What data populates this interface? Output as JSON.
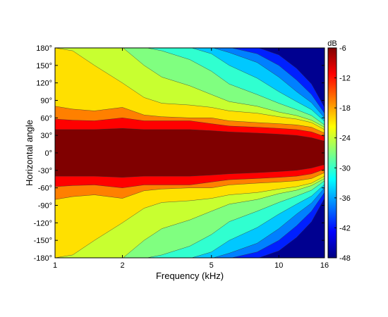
{
  "chart_data": {
    "type": "heatmap",
    "title": "",
    "xlabel": "Frequency (kHz)",
    "ylabel": "Horizontal angle",
    "x_scale": "log",
    "xlim": [
      1,
      16
    ],
    "ylim": [
      -180,
      180
    ],
    "x_ticks": [
      1,
      2,
      5,
      10,
      16
    ],
    "x_tick_labels": [
      "1",
      "2",
      "5",
      "10",
      "16"
    ],
    "y_ticks": [
      180,
      150,
      120,
      90,
      60,
      30,
      0,
      -30,
      -60,
      -90,
      -120,
      -150,
      -180
    ],
    "y_tick_labels": [
      "180°",
      "150°",
      "120°",
      "90°",
      "60°",
      "30°",
      "0°",
      "-30°",
      "-60°",
      "-90°",
      "-120°",
      "-150°",
      "-180°"
    ],
    "colorbar": {
      "unit_label": "dB",
      "range": [
        -48,
        -6
      ],
      "ticks": [
        -6,
        -12,
        -18,
        -24,
        -30,
        -36,
        -42,
        -48
      ],
      "tick_labels": [
        "-6",
        "-12",
        "-18",
        "-24",
        "-30",
        "-36",
        "-42",
        "-48"
      ]
    },
    "contour_levels": [
      {
        "min_db": -6,
        "color": "#800000"
      },
      {
        "min_db": -9,
        "color": "#ff0000"
      },
      {
        "min_db": -12,
        "color": "#ff8000"
      },
      {
        "min_db": -18,
        "color": "#ffe000"
      },
      {
        "min_db": -22,
        "color": "#c8ff30"
      },
      {
        "min_db": -26,
        "color": "#80ff80"
      },
      {
        "min_db": -30,
        "color": "#30ffd0"
      },
      {
        "min_db": -34,
        "color": "#00c8ff"
      },
      {
        "min_db": -38,
        "color": "#0080ff"
      },
      {
        "min_db": -42,
        "color": "#0020ff"
      },
      {
        "min_db": -48,
        "color": "#000090"
      }
    ],
    "isolines_angle_by_level": {
      "x_khz": [
        1,
        1.2,
        1.5,
        2,
        2.5,
        3,
        4,
        5,
        6,
        8,
        10,
        12,
        14,
        16
      ],
      "-6": [
        40,
        40,
        40,
        42,
        40,
        40,
        40,
        38,
        36,
        34,
        32,
        30,
        26,
        20
      ],
      "-9": [
        58,
        56,
        55,
        60,
        55,
        55,
        55,
        50,
        46,
        44,
        42,
        40,
        36,
        28
      ],
      "-12": [
        80,
        75,
        72,
        78,
        65,
        62,
        60,
        60,
        55,
        52,
        50,
        48,
        44,
        34
      ],
      "-18": [
        180,
        175,
        150,
        120,
        95,
        85,
        82,
        78,
        72,
        68,
        62,
        58,
        52,
        40
      ],
      "-22": [
        181,
        181,
        181,
        181,
        150,
        130,
        115,
        100,
        88,
        80,
        70,
        64,
        56,
        44
      ],
      "-26": [
        181,
        181,
        181,
        181,
        181,
        175,
        160,
        140,
        118,
        100,
        85,
        74,
        64,
        48
      ],
      "-30": [
        181,
        181,
        181,
        181,
        181,
        181,
        181,
        170,
        150,
        128,
        105,
        88,
        74,
        54
      ],
      "-34": [
        181,
        181,
        181,
        181,
        181,
        181,
        181,
        181,
        172,
        155,
        130,
        105,
        86,
        60
      ],
      "-38": [
        181,
        181,
        181,
        181,
        181,
        181,
        181,
        181,
        181,
        170,
        150,
        125,
        100,
        68
      ],
      "-42": [
        181,
        181,
        181,
        181,
        181,
        181,
        181,
        181,
        181,
        181,
        168,
        145,
        118,
        78
      ]
    },
    "grid": false,
    "colorbar_position": "right"
  }
}
